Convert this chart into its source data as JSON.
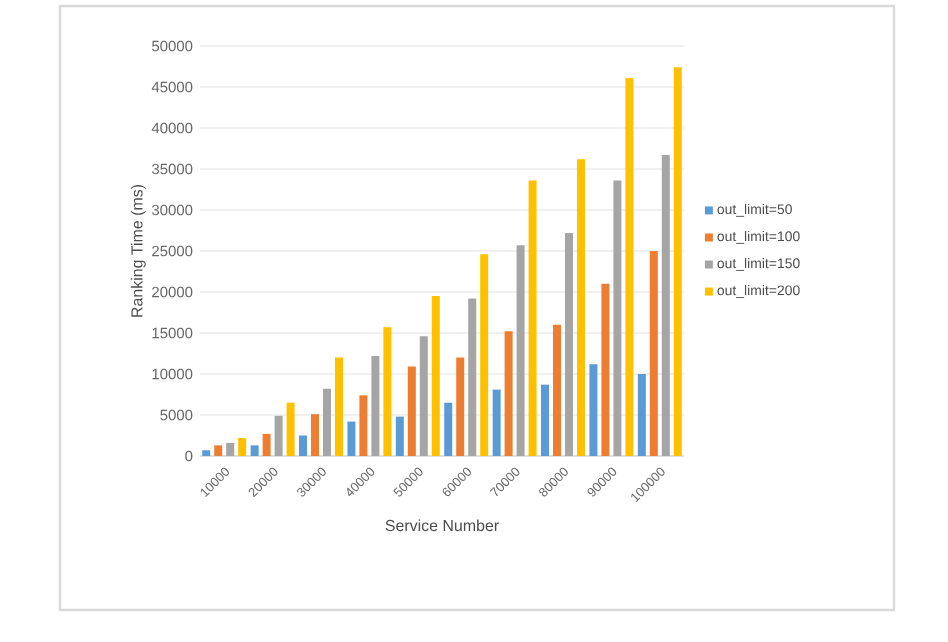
{
  "chart_data": {
    "type": "bar",
    "xlabel": "Service Number",
    "ylabel": "Ranking Time (ms)",
    "categories": [
      "10000",
      "20000",
      "30000",
      "40000",
      "50000",
      "60000",
      "70000",
      "80000",
      "90000",
      "100000"
    ],
    "series": [
      {
        "name": "out_limit=50",
        "color": "#5b9bd5",
        "values": [
          700,
          1300,
          2500,
          4200,
          4800,
          6500,
          8100,
          8700,
          11200,
          10000
        ]
      },
      {
        "name": "out_limit=100",
        "color": "#ed7d31",
        "values": [
          1300,
          2700,
          5100,
          7400,
          10900,
          12000,
          15200,
          16000,
          21000,
          25000
        ]
      },
      {
        "name": "out_limit=150",
        "color": "#a5a5a5",
        "values": [
          1600,
          4900,
          8200,
          12200,
          14600,
          19200,
          25700,
          27200,
          33600,
          36700
        ]
      },
      {
        "name": "out_limit=200",
        "color": "#ffc000",
        "values": [
          2200,
          6500,
          12000,
          15700,
          19500,
          24600,
          33600,
          36200,
          46100,
          47400
        ]
      }
    ],
    "ylim": [
      0,
      50000
    ],
    "yticks": [
      0,
      5000,
      10000,
      15000,
      20000,
      25000,
      30000,
      35000,
      40000,
      45000,
      50000
    ],
    "grid": "y",
    "legend": "right"
  }
}
